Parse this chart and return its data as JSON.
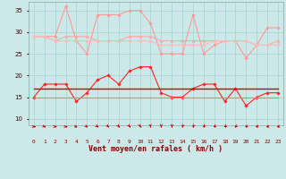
{
  "x": [
    0,
    1,
    2,
    3,
    4,
    5,
    6,
    7,
    8,
    9,
    10,
    11,
    12,
    13,
    14,
    15,
    16,
    17,
    18,
    19,
    20,
    21,
    22,
    23
  ],
  "background_color": "#cce8e8",
  "grid_color": "#99cccc",
  "xlabel": "Vent moyen/en rafales ( km/h )",
  "ylim": [
    8.5,
    37
  ],
  "yticks": [
    10,
    15,
    20,
    25,
    30,
    35
  ],
  "series": [
    {
      "label": "rafales_high",
      "color": "#ff9999",
      "linewidth": 0.8,
      "marker": "D",
      "markersize": 1.8,
      "data": [
        29,
        29,
        29,
        36,
        28,
        25,
        34,
        34,
        34,
        35,
        35,
        32,
        25,
        25,
        25,
        34,
        25,
        27,
        28,
        28,
        24,
        27,
        31,
        31
      ]
    },
    {
      "label": "rafales_mid",
      "color": "#ffaaaa",
      "linewidth": 0.8,
      "marker": "D",
      "markersize": 1.8,
      "data": [
        29,
        29,
        28,
        29,
        29,
        29,
        28,
        28,
        28,
        29,
        29,
        29,
        28,
        28,
        28,
        28,
        28,
        28,
        28,
        28,
        28,
        27,
        27,
        28
      ]
    },
    {
      "label": "rafales_low",
      "color": "#ffbbbb",
      "linewidth": 0.8,
      "marker": "D",
      "markersize": 1.8,
      "data": [
        29,
        29,
        28,
        28,
        28,
        28,
        28,
        28,
        28,
        28,
        28,
        28,
        27,
        27,
        27,
        27,
        27,
        28,
        28,
        28,
        28,
        27,
        27,
        27
      ]
    },
    {
      "label": "vent_high",
      "color": "#ff2222",
      "linewidth": 0.8,
      "marker": "D",
      "markersize": 1.8,
      "data": [
        15,
        18,
        18,
        18,
        14,
        16,
        19,
        20,
        18,
        21,
        22,
        22,
        16,
        15,
        15,
        17,
        18,
        18,
        14,
        17,
        13,
        15,
        16,
        16
      ]
    },
    {
      "label": "vent_flat",
      "color": "#cc0000",
      "linewidth": 1.0,
      "marker": null,
      "markersize": 0,
      "data": [
        17,
        17,
        17,
        17,
        17,
        17,
        17,
        17,
        17,
        17,
        17,
        17,
        17,
        17,
        17,
        17,
        17,
        17,
        17,
        17,
        17,
        17,
        17,
        17
      ]
    },
    {
      "label": "vent_low",
      "color": "#ff7777",
      "linewidth": 0.8,
      "marker": null,
      "markersize": 0,
      "data": [
        15,
        15,
        15,
        15,
        15,
        15,
        15,
        15,
        15,
        15,
        15,
        15,
        15,
        15,
        15,
        15,
        15,
        15,
        15,
        15,
        15,
        15,
        15,
        15
      ]
    }
  ],
  "wind_angles": [
    90,
    120,
    100,
    90,
    110,
    130,
    140,
    150,
    155,
    160,
    170,
    175,
    180,
    185,
    195,
    200,
    210,
    220,
    225,
    230,
    235,
    240,
    245,
    250
  ],
  "arrow_color": "#cc0000"
}
